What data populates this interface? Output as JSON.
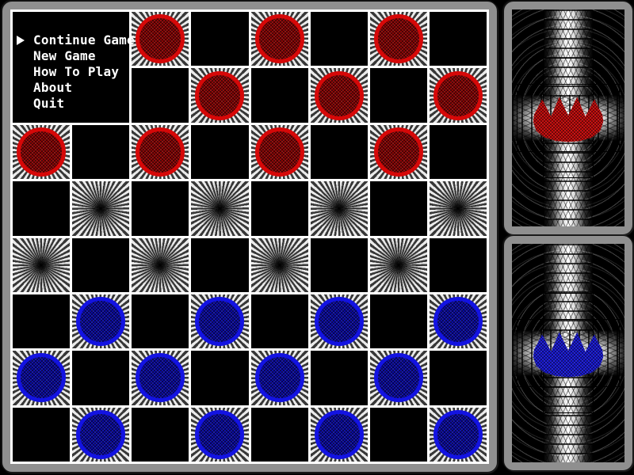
{
  "menu": {
    "cursor_glyph": "▶",
    "items": [
      {
        "label": "Continue Game",
        "selected": true
      },
      {
        "label": "New Game",
        "selected": false
      },
      {
        "label": "How To Play",
        "selected": false
      },
      {
        "label": "About",
        "selected": false
      },
      {
        "label": "Quit",
        "selected": false
      }
    ]
  },
  "board": {
    "rows": 8,
    "cols": 8,
    "grid_line_color": "#ffffff",
    "dark_square_color": "#000000",
    "light_square_pattern": "starburst",
    "pieces": [
      {
        "row": 1,
        "col": 3,
        "color": "red"
      },
      {
        "row": 1,
        "col": 5,
        "color": "red"
      },
      {
        "row": 1,
        "col": 7,
        "color": "red"
      },
      {
        "row": 2,
        "col": 4,
        "color": "red"
      },
      {
        "row": 2,
        "col": 6,
        "color": "red"
      },
      {
        "row": 2,
        "col": 8,
        "color": "red"
      },
      {
        "row": 3,
        "col": 1,
        "color": "red"
      },
      {
        "row": 3,
        "col": 3,
        "color": "red"
      },
      {
        "row": 3,
        "col": 5,
        "color": "red"
      },
      {
        "row": 3,
        "col": 7,
        "color": "red"
      },
      {
        "row": 6,
        "col": 2,
        "color": "blue"
      },
      {
        "row": 6,
        "col": 4,
        "color": "blue"
      },
      {
        "row": 6,
        "col": 6,
        "color": "blue"
      },
      {
        "row": 6,
        "col": 8,
        "color": "blue"
      },
      {
        "row": 7,
        "col": 1,
        "color": "blue"
      },
      {
        "row": 7,
        "col": 3,
        "color": "blue"
      },
      {
        "row": 7,
        "col": 5,
        "color": "blue"
      },
      {
        "row": 7,
        "col": 7,
        "color": "blue"
      },
      {
        "row": 8,
        "col": 2,
        "color": "blue"
      },
      {
        "row": 8,
        "col": 4,
        "color": "blue"
      },
      {
        "row": 8,
        "col": 6,
        "color": "blue"
      },
      {
        "row": 8,
        "col": 8,
        "color": "blue"
      }
    ],
    "piece_colors": {
      "red": {
        "ring": "#d60808",
        "fill": "#8a0404"
      },
      "blue": {
        "ring": "#1313e2",
        "fill": "#0a0aa2"
      }
    }
  },
  "panels": {
    "top": {
      "icon": "red-crown",
      "color": "#c40a0a"
    },
    "bottom": {
      "icon": "blue-crown",
      "color": "#1818d6"
    }
  }
}
